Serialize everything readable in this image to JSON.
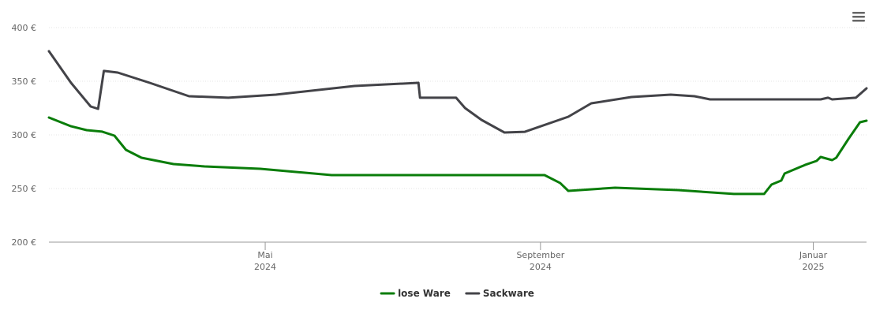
{
  "chart_data": {
    "type": "line",
    "ylim": [
      200,
      400
    ],
    "yticks": [
      {
        "value": 200,
        "label": "200 €"
      },
      {
        "value": 250,
        "label": "250 €"
      },
      {
        "value": 300,
        "label": "300 €"
      },
      {
        "value": 350,
        "label": "350 €"
      },
      {
        "value": 400,
        "label": "400 €"
      }
    ],
    "xlim": [
      2024.067,
      2025.065
    ],
    "xticks": [
      {
        "value": 2024.331,
        "label": [
          "Mai",
          "2024"
        ]
      },
      {
        "value": 2024.667,
        "label": [
          "September",
          "2024"
        ]
      },
      {
        "value": 2025.0,
        "label": [
          "Januar",
          "2025"
        ]
      }
    ],
    "grid": true,
    "legend": "bottom",
    "series": [
      {
        "name": "lose Ware",
        "color": "#0a7d0a",
        "x": [
          2024.067,
          2024.094,
          2024.113,
          2024.132,
          2024.147,
          2024.161,
          2024.18,
          2024.219,
          2024.257,
          2024.325,
          2024.412,
          2024.489,
          2024.672,
          2024.691,
          2024.701,
          2024.758,
          2024.835,
          2024.903,
          2024.94,
          2024.949,
          2024.961,
          2024.965,
          2024.99,
          2025.004,
          2025.009,
          2025.023,
          2025.028,
          2025.043,
          2025.057,
          2025.065
        ],
        "values": [
          316.2,
          308,
          304.4,
          303,
          299.3,
          286,
          278.7,
          272.8,
          270.6,
          268.4,
          262.5,
          262.5,
          262.5,
          255.1,
          247.8,
          250.7,
          248.5,
          244.9,
          244.9,
          253.7,
          257.4,
          264,
          272,
          275.7,
          279.4,
          276.5,
          278.7,
          296.3,
          311.8,
          313.2
        ]
      },
      {
        "name": "Sackware",
        "color": "#434348",
        "x": [
          2024.067,
          2024.094,
          2024.118,
          2024.127,
          2024.134,
          2024.151,
          2024.19,
          2024.238,
          2024.286,
          2024.344,
          2024.44,
          2024.518,
          2024.52,
          2024.564,
          2024.575,
          2024.595,
          2024.623,
          2024.648,
          2024.701,
          2024.729,
          2024.778,
          2024.826,
          2024.855,
          2024.874,
          2025.009,
          2025.018,
          2025.023,
          2025.052,
          2025.065
        ],
        "values": [
          378,
          348.5,
          326.5,
          324.3,
          359.6,
          358.1,
          348.5,
          336,
          334.6,
          337.5,
          345.6,
          348.5,
          334.6,
          334.6,
          325,
          314,
          302.2,
          302.9,
          316.9,
          329.4,
          335.3,
          337.5,
          336,
          333.1,
          333.1,
          334.6,
          333.1,
          334.6,
          343.4
        ]
      }
    ]
  }
}
